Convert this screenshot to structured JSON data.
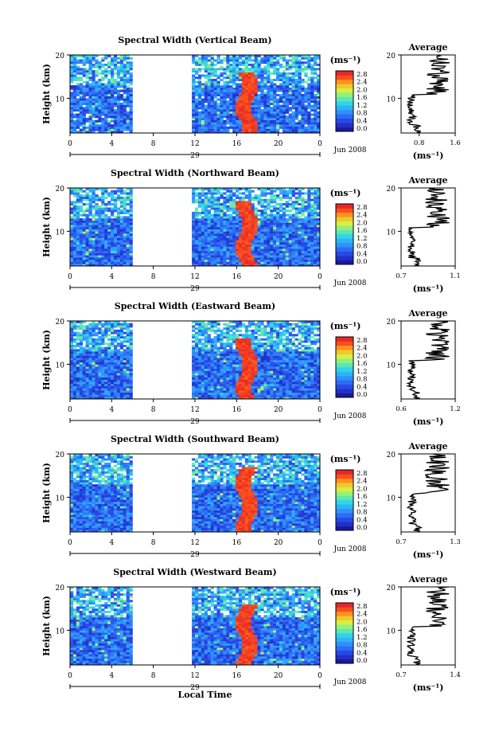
{
  "figure": {
    "bottom_label": "Local Time"
  },
  "chart_data": [
    {
      "type": "heatmap",
      "title": "Spectral Width (Vertical Beam)",
      "ylabel": "Height (km)",
      "y_ticks": [
        "10",
        "20"
      ],
      "x_ticks": [
        "0",
        "4",
        "8",
        "12",
        "16",
        "20",
        "0"
      ],
      "day_label": "29",
      "month_label": "Jun 2008",
      "xlim": [
        0,
        24
      ],
      "ylim": [
        2,
        20
      ],
      "no_data_hours": [
        6,
        11.8
      ],
      "colorbar": {
        "unit": "(ms⁻¹)",
        "range": [
          0,
          2.8
        ],
        "tick_labels": [
          "2.8",
          "2.4",
          "2.0",
          "1.6",
          "1.2",
          "0.8",
          "0.4",
          "0.0"
        ]
      },
      "average": {
        "title": "Average",
        "unit": "(ms⁻¹)",
        "xlim": [
          0.4,
          1.6
        ],
        "tick_labels": [
          "0.8",
          "1.6"
        ],
        "y_ticks": [
          "10",
          "20"
        ]
      }
    },
    {
      "type": "heatmap",
      "title": "Spectral Width (Northward Beam)",
      "ylabel": "Height (km)",
      "y_ticks": [
        "10",
        "20"
      ],
      "x_ticks": [
        "0",
        "4",
        "8",
        "12",
        "16",
        "20",
        "0"
      ],
      "day_label": "29",
      "month_label": "Jun 2008",
      "xlim": [
        0,
        24
      ],
      "ylim": [
        2,
        20
      ],
      "no_data_hours": [
        6,
        11.8
      ],
      "colorbar": {
        "unit": "(ms⁻¹)",
        "range": [
          0,
          2.8
        ],
        "tick_labels": [
          "2.8",
          "2.4",
          "2.0",
          "1.6",
          "1.2",
          "0.8",
          "0.4",
          "0.0"
        ]
      },
      "average": {
        "title": "Average",
        "unit": "(ms⁻¹)",
        "xlim": [
          0.7,
          1.1
        ],
        "tick_labels": [
          "0.7",
          "1.1"
        ],
        "y_ticks": [
          "10",
          "20"
        ]
      }
    },
    {
      "type": "heatmap",
      "title": "Spectral Width (Eastward Beam)",
      "ylabel": "Height (km)",
      "y_ticks": [
        "10",
        "20"
      ],
      "x_ticks": [
        "0",
        "4",
        "8",
        "12",
        "16",
        "20",
        "0"
      ],
      "day_label": "29",
      "month_label": "Jun 2008",
      "xlim": [
        0,
        24
      ],
      "ylim": [
        2,
        20
      ],
      "no_data_hours": [
        6,
        11.8
      ],
      "colorbar": {
        "unit": "(ms⁻¹)",
        "range": [
          0,
          2.8
        ],
        "tick_labels": [
          "2.8",
          "2.4",
          "2.0",
          "1.6",
          "1.2",
          "0.8",
          "0.4",
          "0.0"
        ]
      },
      "average": {
        "title": "Average",
        "unit": "(ms⁻¹)",
        "xlim": [
          0.6,
          1.2
        ],
        "tick_labels": [
          "0.6",
          "1.2"
        ],
        "y_ticks": [
          "10",
          "20"
        ]
      }
    },
    {
      "type": "heatmap",
      "title": "Spectral Width (Southward Beam)",
      "ylabel": "Height (km)",
      "y_ticks": [
        "10",
        "20"
      ],
      "x_ticks": [
        "0",
        "4",
        "8",
        "12",
        "16",
        "20",
        "0"
      ],
      "day_label": "29",
      "month_label": "Jun 2008",
      "xlim": [
        0,
        24
      ],
      "ylim": [
        2,
        20
      ],
      "no_data_hours": [
        6,
        11.8
      ],
      "colorbar": {
        "unit": "(ms⁻¹)",
        "range": [
          0,
          2.8
        ],
        "tick_labels": [
          "2.8",
          "2.4",
          "2.0",
          "1.6",
          "1.2",
          "0.8",
          "0.4",
          "0.0"
        ]
      },
      "average": {
        "title": "Average",
        "unit": "(ms⁻¹)",
        "xlim": [
          0.7,
          1.3
        ],
        "tick_labels": [
          "0.7",
          "1.3"
        ],
        "y_ticks": [
          "10",
          "20"
        ]
      }
    },
    {
      "type": "heatmap",
      "title": "Spectral Width (Westward Beam)",
      "ylabel": "Height (km)",
      "y_ticks": [
        "10",
        "20"
      ],
      "x_ticks": [
        "0",
        "4",
        "8",
        "12",
        "16",
        "20",
        "0"
      ],
      "day_label": "29",
      "month_label": "Jun 2008",
      "xlim": [
        0,
        24
      ],
      "ylim": [
        2,
        20
      ],
      "no_data_hours": [
        6,
        11.8
      ],
      "colorbar": {
        "unit": "(ms⁻¹)",
        "range": [
          0,
          2.8
        ],
        "tick_labels": [
          "2.8",
          "2.4",
          "2.0",
          "1.6",
          "1.2",
          "0.8",
          "0.4",
          "0.0"
        ]
      },
      "average": {
        "title": "Average",
        "unit": "(ms⁻¹)",
        "xlim": [
          0.7,
          1.4
        ],
        "tick_labels": [
          "0.7",
          "1.4"
        ],
        "y_ticks": [
          "10",
          "20"
        ]
      }
    }
  ]
}
